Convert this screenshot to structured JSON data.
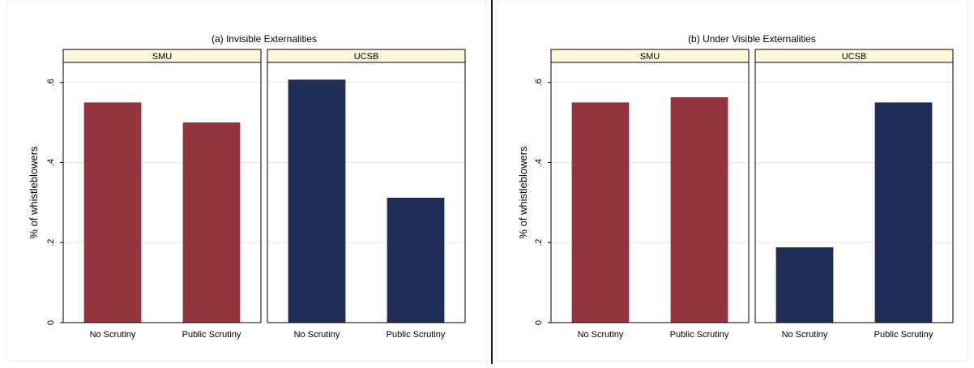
{
  "colors": {
    "smu_bar": "#93353f",
    "ucsb_bar": "#1f2c55",
    "strip_fill": "#fdf7dc",
    "grid": "#e6e6e6",
    "divider": "#1a1a1a"
  },
  "chart_data": [
    {
      "type": "bar",
      "title": "(a) Invisible Externalities",
      "ylabel": "% of whistleblowers",
      "ylim": [
        0,
        0.65
      ],
      "yticks": [
        {
          "value": 0,
          "label": "0"
        },
        {
          "value": 0.2,
          "label": ".2"
        },
        {
          "value": 0.4,
          "label": ".4"
        },
        {
          "value": 0.6,
          "label": ".6"
        }
      ],
      "grid": true,
      "categories": [
        "No Scrutiny",
        "Public Scrutiny"
      ],
      "facets": [
        {
          "name": "SMU",
          "color": "#93353f",
          "values": [
            0.55,
            0.5
          ]
        },
        {
          "name": "UCSB",
          "color": "#1f2c55",
          "values": [
            0.607,
            0.312
          ]
        }
      ]
    },
    {
      "type": "bar",
      "title": "(b) Under Visible Externalities",
      "ylabel": "% of whistleblowers",
      "ylim": [
        0,
        0.65
      ],
      "yticks": [
        {
          "value": 0,
          "label": "0"
        },
        {
          "value": 0.2,
          "label": ".2"
        },
        {
          "value": 0.4,
          "label": ".4"
        },
        {
          "value": 0.6,
          "label": ".6"
        }
      ],
      "grid": true,
      "categories": [
        "No Scrutiny",
        "Public Scrutiny"
      ],
      "facets": [
        {
          "name": "SMU",
          "color": "#93353f",
          "values": [
            0.55,
            0.563
          ]
        },
        {
          "name": "UCSB",
          "color": "#1f2c55",
          "values": [
            0.188,
            0.55
          ]
        }
      ]
    }
  ]
}
